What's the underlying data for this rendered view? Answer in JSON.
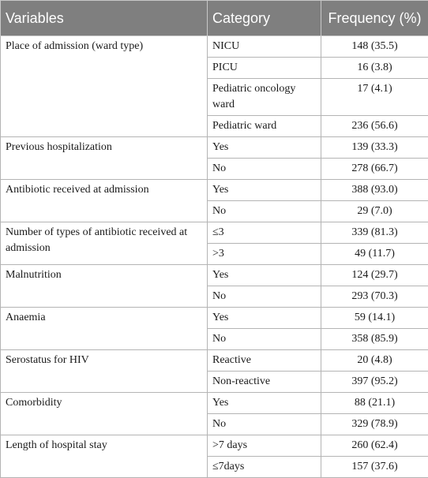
{
  "headers": {
    "variables": "Variables",
    "category": "Category",
    "frequency": "Frequency (%)"
  },
  "groups": [
    {
      "variable": "Place of admission (ward type)",
      "rows": [
        {
          "category": "NICU",
          "frequency": "148 (35.5)"
        },
        {
          "category": "PICU",
          "frequency": "16 (3.8)"
        },
        {
          "category": "Pediatric oncology ward",
          "frequency": "17 (4.1)"
        },
        {
          "category": "Pediatric ward",
          "frequency": "236 (56.6)"
        }
      ]
    },
    {
      "variable": "Previous hospitalization",
      "rows": [
        {
          "category": "Yes",
          "frequency": "139 (33.3)"
        },
        {
          "category": "No",
          "frequency": "278 (66.7)"
        }
      ]
    },
    {
      "variable": "Antibiotic received at admission",
      "rows": [
        {
          "category": "Yes",
          "frequency": "388 (93.0)"
        },
        {
          "category": "No",
          "frequency": "29 (7.0)"
        }
      ]
    },
    {
      "variable": "Number of types of antibiotic received at admission",
      "rows": [
        {
          "category": "≤3",
          "frequency": "339 (81.3)"
        },
        {
          "category": ">3",
          "frequency": "49 (11.7)"
        }
      ]
    },
    {
      "variable": "Malnutrition",
      "rows": [
        {
          "category": "Yes",
          "frequency": "124 (29.7)"
        },
        {
          "category": "No",
          "frequency": "293 (70.3)"
        }
      ]
    },
    {
      "variable": "Anaemia",
      "rows": [
        {
          "category": "Yes",
          "frequency": "59 (14.1)"
        },
        {
          "category": "No",
          "frequency": "358 (85.9)"
        }
      ]
    },
    {
      "variable": "Serostatus for HIV",
      "rows": [
        {
          "category": "Reactive",
          "frequency": "20 (4.8)"
        },
        {
          "category": "Non-reactive",
          "frequency": "397 (95.2)"
        }
      ]
    },
    {
      "variable": "Comorbidity",
      "rows": [
        {
          "category": "Yes",
          "frequency": "88 (21.1)"
        },
        {
          "category": "No",
          "frequency": "329 (78.9)"
        }
      ]
    },
    {
      "variable": "Length of hospital stay",
      "rows": [
        {
          "category": ">7 days",
          "frequency": "260 (62.4)"
        },
        {
          "category": "≤7days",
          "frequency": "157 (37.6)"
        }
      ]
    }
  ]
}
